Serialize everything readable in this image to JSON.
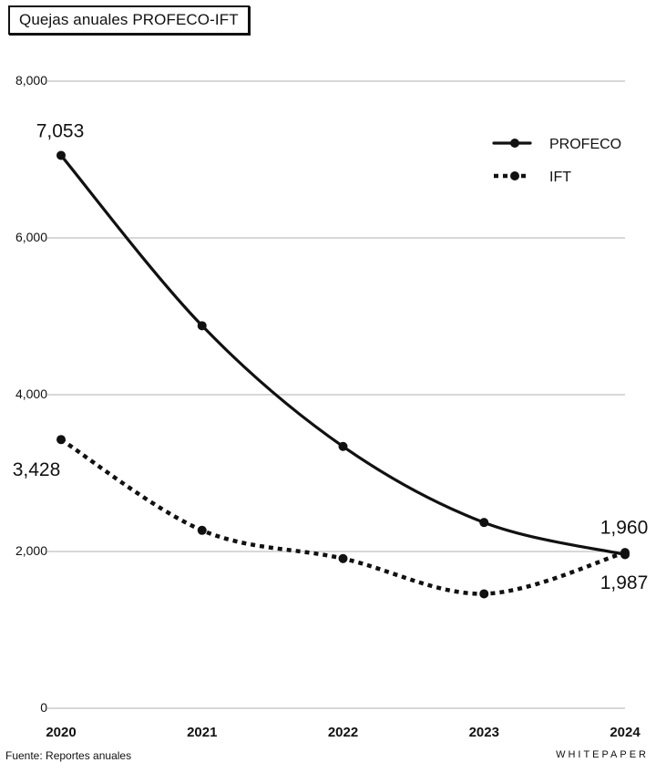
{
  "chart_data": {
    "type": "line",
    "title": "Quejas anuales PROFECO-IFT",
    "x": [
      "2020",
      "2021",
      "2022",
      "2023",
      "2024"
    ],
    "ylim": [
      0,
      8000
    ],
    "yticks": [
      0,
      2000,
      4000,
      6000,
      8000
    ],
    "ytick_labels": [
      "0",
      "2,000",
      "4,000",
      "6,000",
      "8,000"
    ],
    "grid": true,
    "legend_position": "top-right",
    "series": [
      {
        "name": "PROFECO",
        "style": "solid",
        "values": [
          7053,
          4880,
          3340,
          2370,
          1960
        ]
      },
      {
        "name": "IFT",
        "style": "dotted",
        "values": [
          3428,
          2270,
          1910,
          1460,
          1987
        ]
      }
    ],
    "data_labels": [
      {
        "series": "PROFECO",
        "index": 0,
        "text": "7,053"
      },
      {
        "series": "IFT",
        "index": 0,
        "text": "3,428"
      },
      {
        "series": "PROFECO",
        "index": 4,
        "text": "1,960"
      },
      {
        "series": "IFT",
        "index": 4,
        "text": "1,987"
      }
    ]
  },
  "footer": {
    "source": "Fuente: Reportes anuales",
    "brand": "WHITEPAPER"
  },
  "colors": {
    "ink": "#111111",
    "grid": "#cccccc",
    "background": "#ffffff"
  }
}
